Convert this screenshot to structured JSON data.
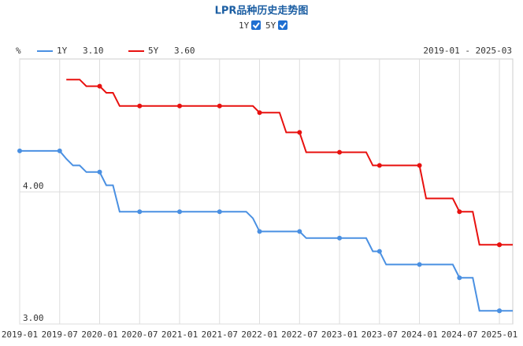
{
  "chart_data": {
    "type": "line",
    "title": "LPR品种历史走势图",
    "y_unit": "%",
    "date_range": "2019-01 - 2025-03",
    "x": [
      "2019-01",
      "2019-02",
      "2019-03",
      "2019-04",
      "2019-05",
      "2019-06",
      "2019-07",
      "2019-08",
      "2019-09",
      "2019-10",
      "2019-11",
      "2019-12",
      "2020-01",
      "2020-02",
      "2020-03",
      "2020-04",
      "2020-05",
      "2020-06",
      "2020-07",
      "2020-08",
      "2020-09",
      "2020-10",
      "2020-11",
      "2020-12",
      "2021-01",
      "2021-02",
      "2021-03",
      "2021-04",
      "2021-05",
      "2021-06",
      "2021-07",
      "2021-08",
      "2021-09",
      "2021-10",
      "2021-11",
      "2021-12",
      "2022-01",
      "2022-02",
      "2022-03",
      "2022-04",
      "2022-05",
      "2022-06",
      "2022-07",
      "2022-08",
      "2022-09",
      "2022-10",
      "2022-11",
      "2022-12",
      "2023-01",
      "2023-02",
      "2023-03",
      "2023-04",
      "2023-05",
      "2023-06",
      "2023-07",
      "2023-08",
      "2023-09",
      "2023-10",
      "2023-11",
      "2023-12",
      "2024-01",
      "2024-02",
      "2024-03",
      "2024-04",
      "2024-05",
      "2024-06",
      "2024-07",
      "2024-08",
      "2024-09",
      "2024-10",
      "2024-11",
      "2024-12",
      "2025-01",
      "2025-02",
      "2025-03"
    ],
    "xticks": [
      "2019-01",
      "2019-07",
      "2020-01",
      "2020-07",
      "2021-01",
      "2021-07",
      "2022-01",
      "2022-07",
      "2023-01",
      "2023-07",
      "2024-01",
      "2024-07",
      "2025-01"
    ],
    "ylim": [
      3.0,
      5.0
    ],
    "yticks": [
      {
        "value": 3,
        "label": "3.00"
      },
      {
        "value": 4,
        "label": "4.00"
      }
    ],
    "grid": true,
    "series": [
      {
        "name": "1Y",
        "color": "#4a90e2",
        "legend_value": "3.10",
        "values": [
          4.31,
          4.31,
          4.31,
          4.31,
          4.31,
          4.31,
          4.31,
          4.25,
          4.2,
          4.2,
          4.15,
          4.15,
          4.15,
          4.05,
          4.05,
          3.85,
          3.85,
          3.85,
          3.85,
          3.85,
          3.85,
          3.85,
          3.85,
          3.85,
          3.85,
          3.85,
          3.85,
          3.85,
          3.85,
          3.85,
          3.85,
          3.85,
          3.85,
          3.85,
          3.85,
          3.8,
          3.7,
          3.7,
          3.7,
          3.7,
          3.7,
          3.7,
          3.7,
          3.65,
          3.65,
          3.65,
          3.65,
          3.65,
          3.65,
          3.65,
          3.65,
          3.65,
          3.65,
          3.55,
          3.55,
          3.45,
          3.45,
          3.45,
          3.45,
          3.45,
          3.45,
          3.45,
          3.45,
          3.45,
          3.45,
          3.45,
          3.35,
          3.35,
          3.35,
          3.1,
          3.1,
          3.1,
          3.1,
          3.1,
          3.1
        ]
      },
      {
        "name": "5Y",
        "color": "#e8110f",
        "legend_value": "3.60",
        "values": [
          null,
          null,
          null,
          null,
          null,
          null,
          null,
          4.85,
          4.85,
          4.85,
          4.8,
          4.8,
          4.8,
          4.75,
          4.75,
          4.65,
          4.65,
          4.65,
          4.65,
          4.65,
          4.65,
          4.65,
          4.65,
          4.65,
          4.65,
          4.65,
          4.65,
          4.65,
          4.65,
          4.65,
          4.65,
          4.65,
          4.65,
          4.65,
          4.65,
          4.65,
          4.6,
          4.6,
          4.6,
          4.6,
          4.45,
          4.45,
          4.45,
          4.3,
          4.3,
          4.3,
          4.3,
          4.3,
          4.3,
          4.3,
          4.3,
          4.3,
          4.3,
          4.2,
          4.2,
          4.2,
          4.2,
          4.2,
          4.2,
          4.2,
          4.2,
          3.95,
          3.95,
          3.95,
          3.95,
          3.95,
          3.85,
          3.85,
          3.85,
          3.6,
          3.6,
          3.6,
          3.6,
          3.6,
          3.6
        ]
      }
    ]
  }
}
